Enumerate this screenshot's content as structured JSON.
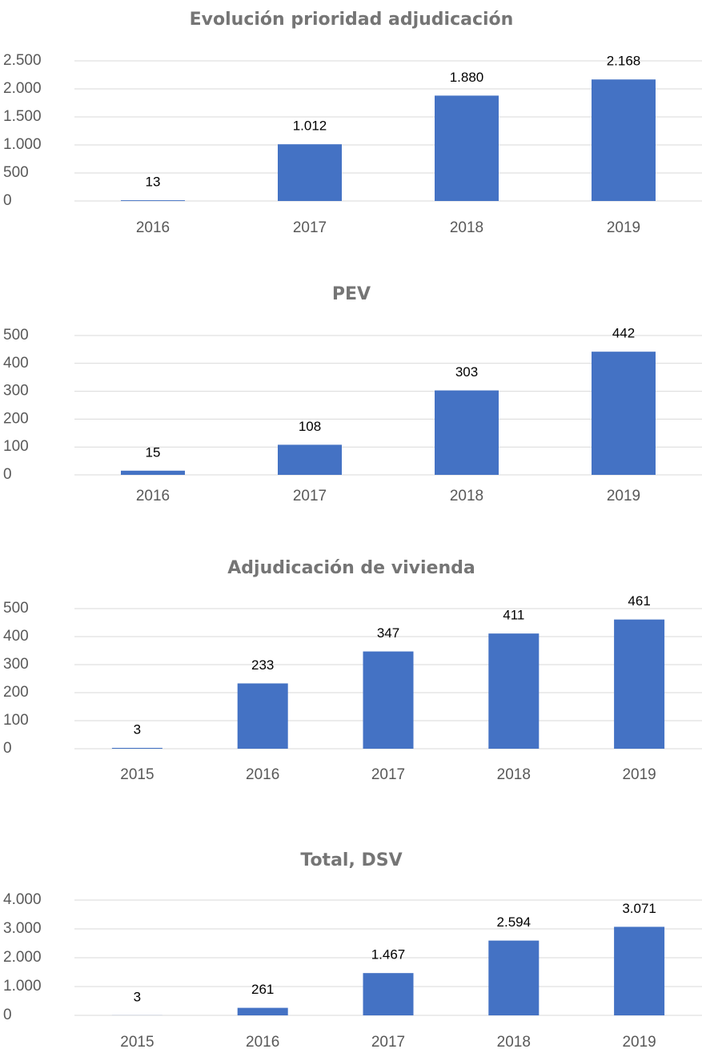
{
  "chart_data": [
    {
      "type": "bar",
      "title": "Evolución prioridad adjudicación",
      "color": "#4472c4",
      "grid": true,
      "categories": [
        "2016",
        "2017",
        "2018",
        "2019"
      ],
      "values": [
        13,
        1012,
        1880,
        2168
      ],
      "value_labels": [
        "13",
        "1.012",
        "1.880",
        "2.168"
      ],
      "ylim": [
        0,
        2500
      ],
      "yticks": [
        0,
        500,
        {
          "value": 1000,
          "label": "1.000"
        },
        {
          "value": 1500,
          "label": "1.500"
        },
        {
          "value": 2000,
          "label": "2.000"
        },
        {
          "value": 2500,
          "label": "2.500"
        }
      ]
    },
    {
      "type": "bar",
      "title": "PEV",
      "color": "#4472c4",
      "grid": true,
      "categories": [
        "2016",
        "2017",
        "2018",
        "2019"
      ],
      "values": [
        15,
        108,
        303,
        442
      ],
      "ylim": [
        0,
        500
      ],
      "yticks": [
        0,
        100,
        200,
        300,
        400,
        500
      ]
    },
    {
      "type": "bar",
      "title": "Adjudicación de vivienda",
      "color": "#4472c4",
      "grid": true,
      "categories": [
        "2015",
        "2016",
        "2017",
        "2018",
        "2019"
      ],
      "values": [
        3,
        233,
        347,
        411,
        461
      ],
      "ylim": [
        0,
        500
      ],
      "yticks": [
        0,
        100,
        200,
        300,
        400,
        500
      ]
    },
    {
      "type": "bar",
      "title": "Total, DSV",
      "color": "#4472c4",
      "grid": true,
      "categories": [
        "2015",
        "2016",
        "2017",
        "2018",
        "2019"
      ],
      "values": [
        3,
        261,
        1467,
        2594,
        3071
      ],
      "value_labels": [
        "3",
        "261",
        "1.467",
        "2.594",
        "3.071"
      ],
      "ylim": [
        0,
        4000
      ],
      "yticks": [
        0,
        {
          "value": 1000,
          "label": "1.000"
        },
        {
          "value": 2000,
          "label": "2.000"
        },
        {
          "value": 3000,
          "label": "3.000"
        },
        {
          "value": 4000,
          "label": "4.000"
        }
      ]
    }
  ]
}
